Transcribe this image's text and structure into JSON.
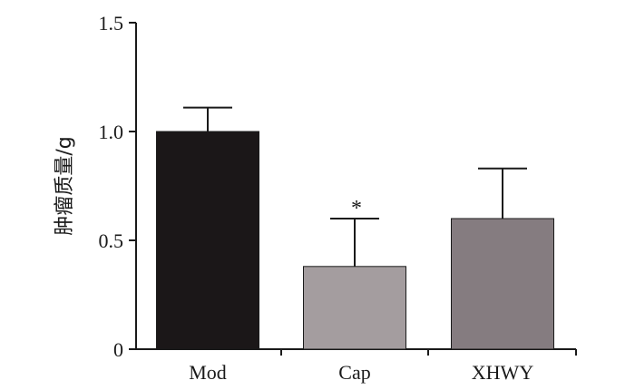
{
  "chart_data": {
    "type": "bar",
    "categories": [
      "Mod",
      "Cap",
      "XHWY"
    ],
    "values": [
      1.0,
      0.38,
      0.6
    ],
    "error_upper": [
      0.11,
      0.22,
      0.23
    ],
    "annotations": [
      "",
      "*",
      ""
    ],
    "bar_colors": [
      "#1b1718",
      "#a49d9f",
      "#857c80"
    ],
    "ylabel": "肿瘤质量/g",
    "xlabel": "",
    "ylim": [
      0,
      1.5
    ],
    "yticks": [
      0,
      0.5,
      1.0,
      1.5
    ],
    "ytick_labels": [
      "0",
      "0.5",
      "1.0",
      "1.5"
    ],
    "grid": false,
    "legend": "none"
  }
}
